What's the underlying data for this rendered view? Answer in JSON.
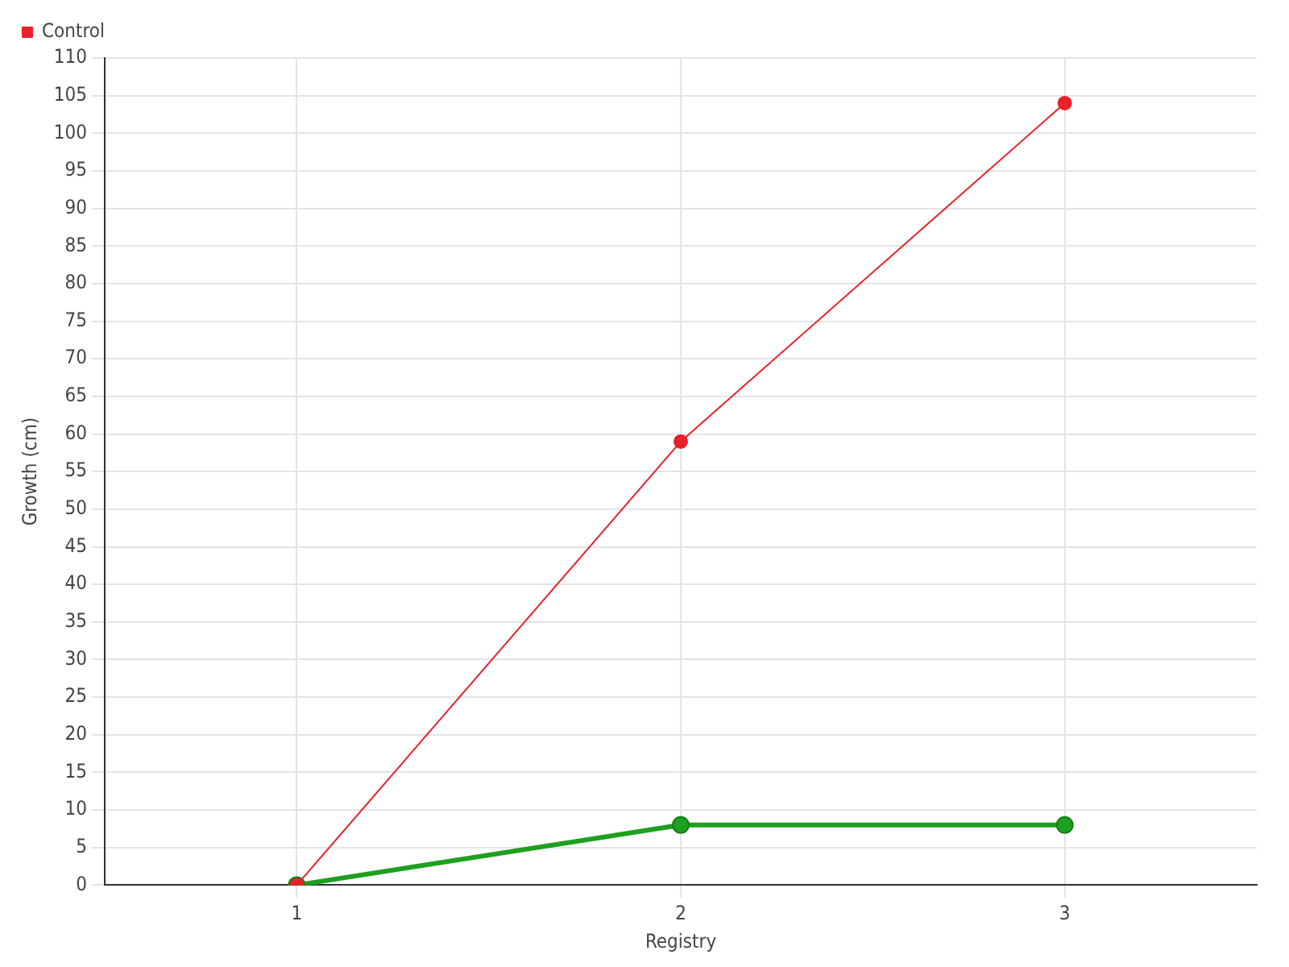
{
  "chart_data": {
    "type": "line",
    "xlabel": "Registry",
    "ylabel": "Growth (cm)",
    "categories": [
      "1",
      "2",
      "3"
    ],
    "series": [
      {
        "color": "#1ea01e",
        "values": [
          0,
          8,
          8
        ]
      },
      {
        "name": "Control",
        "color": "#e8202a",
        "values": [
          0,
          59,
          104
        ]
      }
    ],
    "ylim": [
      0,
      110
    ],
    "yticks": [
      0,
      5,
      10,
      15,
      20,
      25,
      30,
      35,
      40,
      45,
      50,
      55,
      60,
      65,
      70,
      75,
      80,
      85,
      90,
      95,
      100,
      105,
      110
    ],
    "grid": true,
    "legend": "top left",
    "marker": "circle",
    "line_style": "solid"
  }
}
